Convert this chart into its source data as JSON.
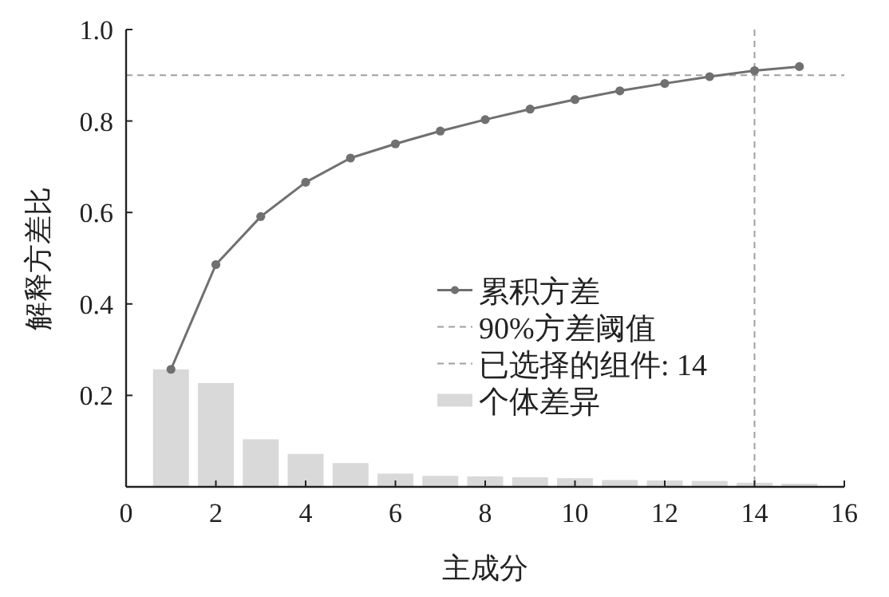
{
  "chart_data": {
    "type": "bar",
    "xlabel": "主成分",
    "ylabel": "解释方差比",
    "x": [
      1,
      2,
      3,
      4,
      5,
      6,
      7,
      8,
      9,
      10,
      11,
      12,
      13,
      14,
      15
    ],
    "series": [
      {
        "name": "累积方差",
        "type": "line",
        "color": "#707070",
        "marker": "circle",
        "line_style": "solid",
        "values": [
          0.257,
          0.486,
          0.591,
          0.666,
          0.719,
          0.75,
          0.778,
          0.803,
          0.826,
          0.847,
          0.866,
          0.882,
          0.897,
          0.91,
          0.919
        ]
      },
      {
        "name": "个体差异",
        "color": "#d9d9d9",
        "values": [
          0.257,
          0.227,
          0.104,
          0.072,
          0.052,
          0.029,
          0.024,
          0.023,
          0.021,
          0.019,
          0.015,
          0.014,
          0.013,
          0.009,
          0.007
        ]
      }
    ],
    "ref_lines": [
      {
        "axis": "y",
        "value": 0.9,
        "label": "90%方差阈值",
        "color": "#a0a0a0",
        "line_style": "dashed"
      },
      {
        "axis": "x",
        "value": 14,
        "label": "已选择的组件: 14",
        "color": "#a0a0a0",
        "line_style": "dashed"
      }
    ],
    "xlim": [
      0,
      16
    ],
    "xticks": [
      0,
      2,
      4,
      6,
      8,
      10,
      12,
      14,
      16
    ],
    "ylim": [
      0,
      1.0
    ],
    "yticks": [
      {
        "value": 0.2,
        "label": "0.2"
      },
      {
        "value": 0.4,
        "label": "0.4"
      },
      {
        "value": 0.6,
        "label": "0.6"
      },
      {
        "value": 0.8,
        "label": "0.8"
      },
      {
        "value": 1.0,
        "label": "1.0"
      }
    ],
    "grid": false,
    "legend": "center"
  }
}
